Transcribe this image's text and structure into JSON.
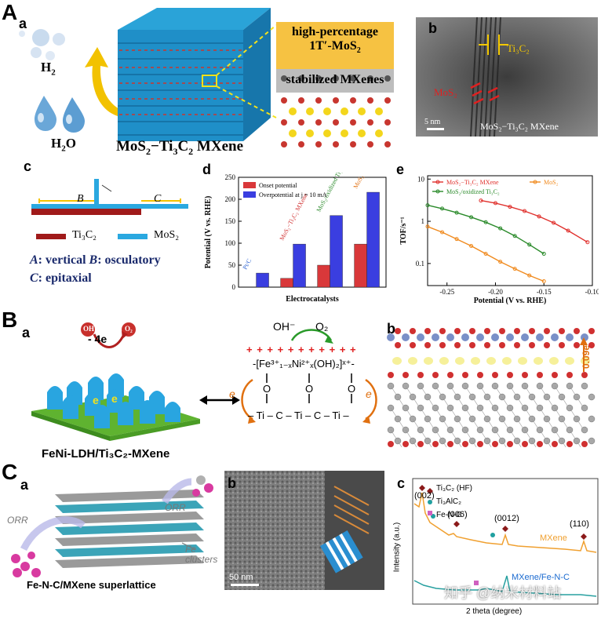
{
  "figure": {
    "A": {
      "label": "A",
      "a": {
        "label": "a",
        "h2": "H",
        "h2_sub": "2",
        "h2o": "H",
        "h2o_sub": "2",
        "h2o_tail": "O",
        "title_pre": "MoS",
        "title_sub1": "2",
        "title_mid": "−Ti",
        "title_sub2": "3",
        "title_c": "C",
        "title_sub3": "2",
        "title_tail": " MXene",
        "box1_line1": "high-percentage",
        "box1_line2_pre": "1T′-MoS",
        "box1_line2_sub": "2",
        "box2": "stabilized MXenes"
      },
      "b": {
        "label": "b",
        "ti3c2": "Ti₃C₂",
        "mos2": "MoS₂",
        "scale": "5 nm",
        "caption": "MoS₂−Ti₃C₂ MXene"
      },
      "c": {
        "label": "c",
        "B": "B",
        "C": "C",
        "legend_ti3c2": "Ti₃C₂",
        "legend_mos2": "MoS₂",
        "line1_key": "A",
        "line1_text": ": vertical  ",
        "line1_key2": "B",
        "line1_text2": ": osculatory",
        "line2_key": "C",
        "line2_text": ": epitaxial"
      },
      "e": {
        "label": "e",
        "legend1": "MoS₂−Ti₃C₂ MXene",
        "legend2": "MoS₂",
        "legend3": "MoS₂/oxidized Ti₃C₂"
      }
    },
    "B": {
      "label": "B",
      "a": {
        "label": "a",
        "oh": "OH",
        "o2": "O₂",
        "minus4e": "- 4e",
        "caption": "FeNi-LDH/Ti₃C₂-MXene",
        "e_left": "e",
        "e_right": "e",
        "scheme_oh": "OH⁻",
        "scheme_o2": "O₂",
        "formula": "-[Fe³⁺₁₋ₓNi²⁺ₓ(OH)₂]ˣ⁺-",
        "plus_row": "+ + + + + + + + + + +",
        "o1": "O",
        "o2b": "O",
        "o3": "O",
        "ti_row": "– Ti – C – Ti – C – Ti –"
      },
      "b": {
        "label": "b",
        "value": "0.09e"
      }
    },
    "C": {
      "label": "C",
      "a": {
        "label": "a",
        "orr_left": "ORR",
        "orr_right": "ORR",
        "fe_clusters_1": "Fe",
        "fe_clusters_2": "clusters",
        "caption": "Fe-N-C/MXene superlattice"
      },
      "b": {
        "label": "b",
        "scale": "50 nm"
      },
      "c": {
        "label": "c",
        "legend1": "Ti₃C₂ (HF)",
        "legend2": "Ti₃AlC₂",
        "legend3": "Fe-N-C",
        "peak1": "(002)",
        "peak2": "(006)",
        "peak3": "(0012)",
        "peak4": "(110)",
        "curve1": "MXene",
        "curve2": "MXene/Fe-N-C",
        "ylabel": "Intensity (a.u.)",
        "xlabel": "2 theta (degree)"
      }
    },
    "watermark": "知乎 @纳米材料站"
  },
  "chart_data": [
    {
      "id": "Ad",
      "type": "bar",
      "label": "d",
      "categories": [
        "Pt/C",
        "MoS₂−Ti₃C₂ MXene",
        "MoS₂/oxidized Ti₃C₂",
        "MoS₂"
      ],
      "series": [
        {
          "name": "Onset potential",
          "values": [
            0,
            20,
            50,
            98
          ],
          "color": "#d9383a"
        },
        {
          "name": "Overpotential at j = 10 mA",
          "values": [
            32,
            98,
            163,
            216
          ],
          "color": "#3a3ee0"
        }
      ],
      "ylabel": "Potential (V vs. RHE)",
      "xlabel": "Electrocatalysts",
      "ylim": [
        0,
        250
      ],
      "yticks": [
        0,
        50,
        100,
        150,
        200,
        250
      ]
    },
    {
      "id": "Ae",
      "type": "line",
      "label": "e",
      "xlabel": "Potential (V vs. RHE)",
      "ylabel": "TOF/s⁻¹",
      "xlim": [
        -0.27,
        -0.1
      ],
      "ylim_log": [
        0.03,
        12
      ],
      "xticks": [
        -0.25,
        -0.2,
        -0.15,
        -0.1
      ],
      "yticks": [
        0.1,
        1,
        10
      ],
      "series": [
        {
          "name": "MoS₂−Ti₃C₂ MXene",
          "color": "#e0302c",
          "x": [
            -0.215,
            -0.2,
            -0.185,
            -0.17,
            -0.155,
            -0.14,
            -0.125,
            -0.105
          ],
          "y": [
            3.1,
            2.7,
            2.2,
            1.75,
            1.3,
            0.92,
            0.6,
            0.32
          ]
        },
        {
          "name": "MoS₂",
          "color": "#f08a1e",
          "x": [
            -0.27,
            -0.255,
            -0.24,
            -0.225,
            -0.21,
            -0.195,
            -0.18,
            -0.165,
            -0.15
          ],
          "y": [
            0.75,
            0.55,
            0.38,
            0.26,
            0.17,
            0.11,
            0.075,
            0.052,
            0.038
          ]
        },
        {
          "name": "MoS₂/oxidized Ti₃C₂",
          "color": "#2a8a2a",
          "x": [
            -0.27,
            -0.255,
            -0.24,
            -0.225,
            -0.21,
            -0.195,
            -0.18,
            -0.165,
            -0.15
          ],
          "y": [
            2.4,
            2.0,
            1.6,
            1.25,
            0.95,
            0.68,
            0.45,
            0.28,
            0.17
          ]
        }
      ]
    }
  ]
}
